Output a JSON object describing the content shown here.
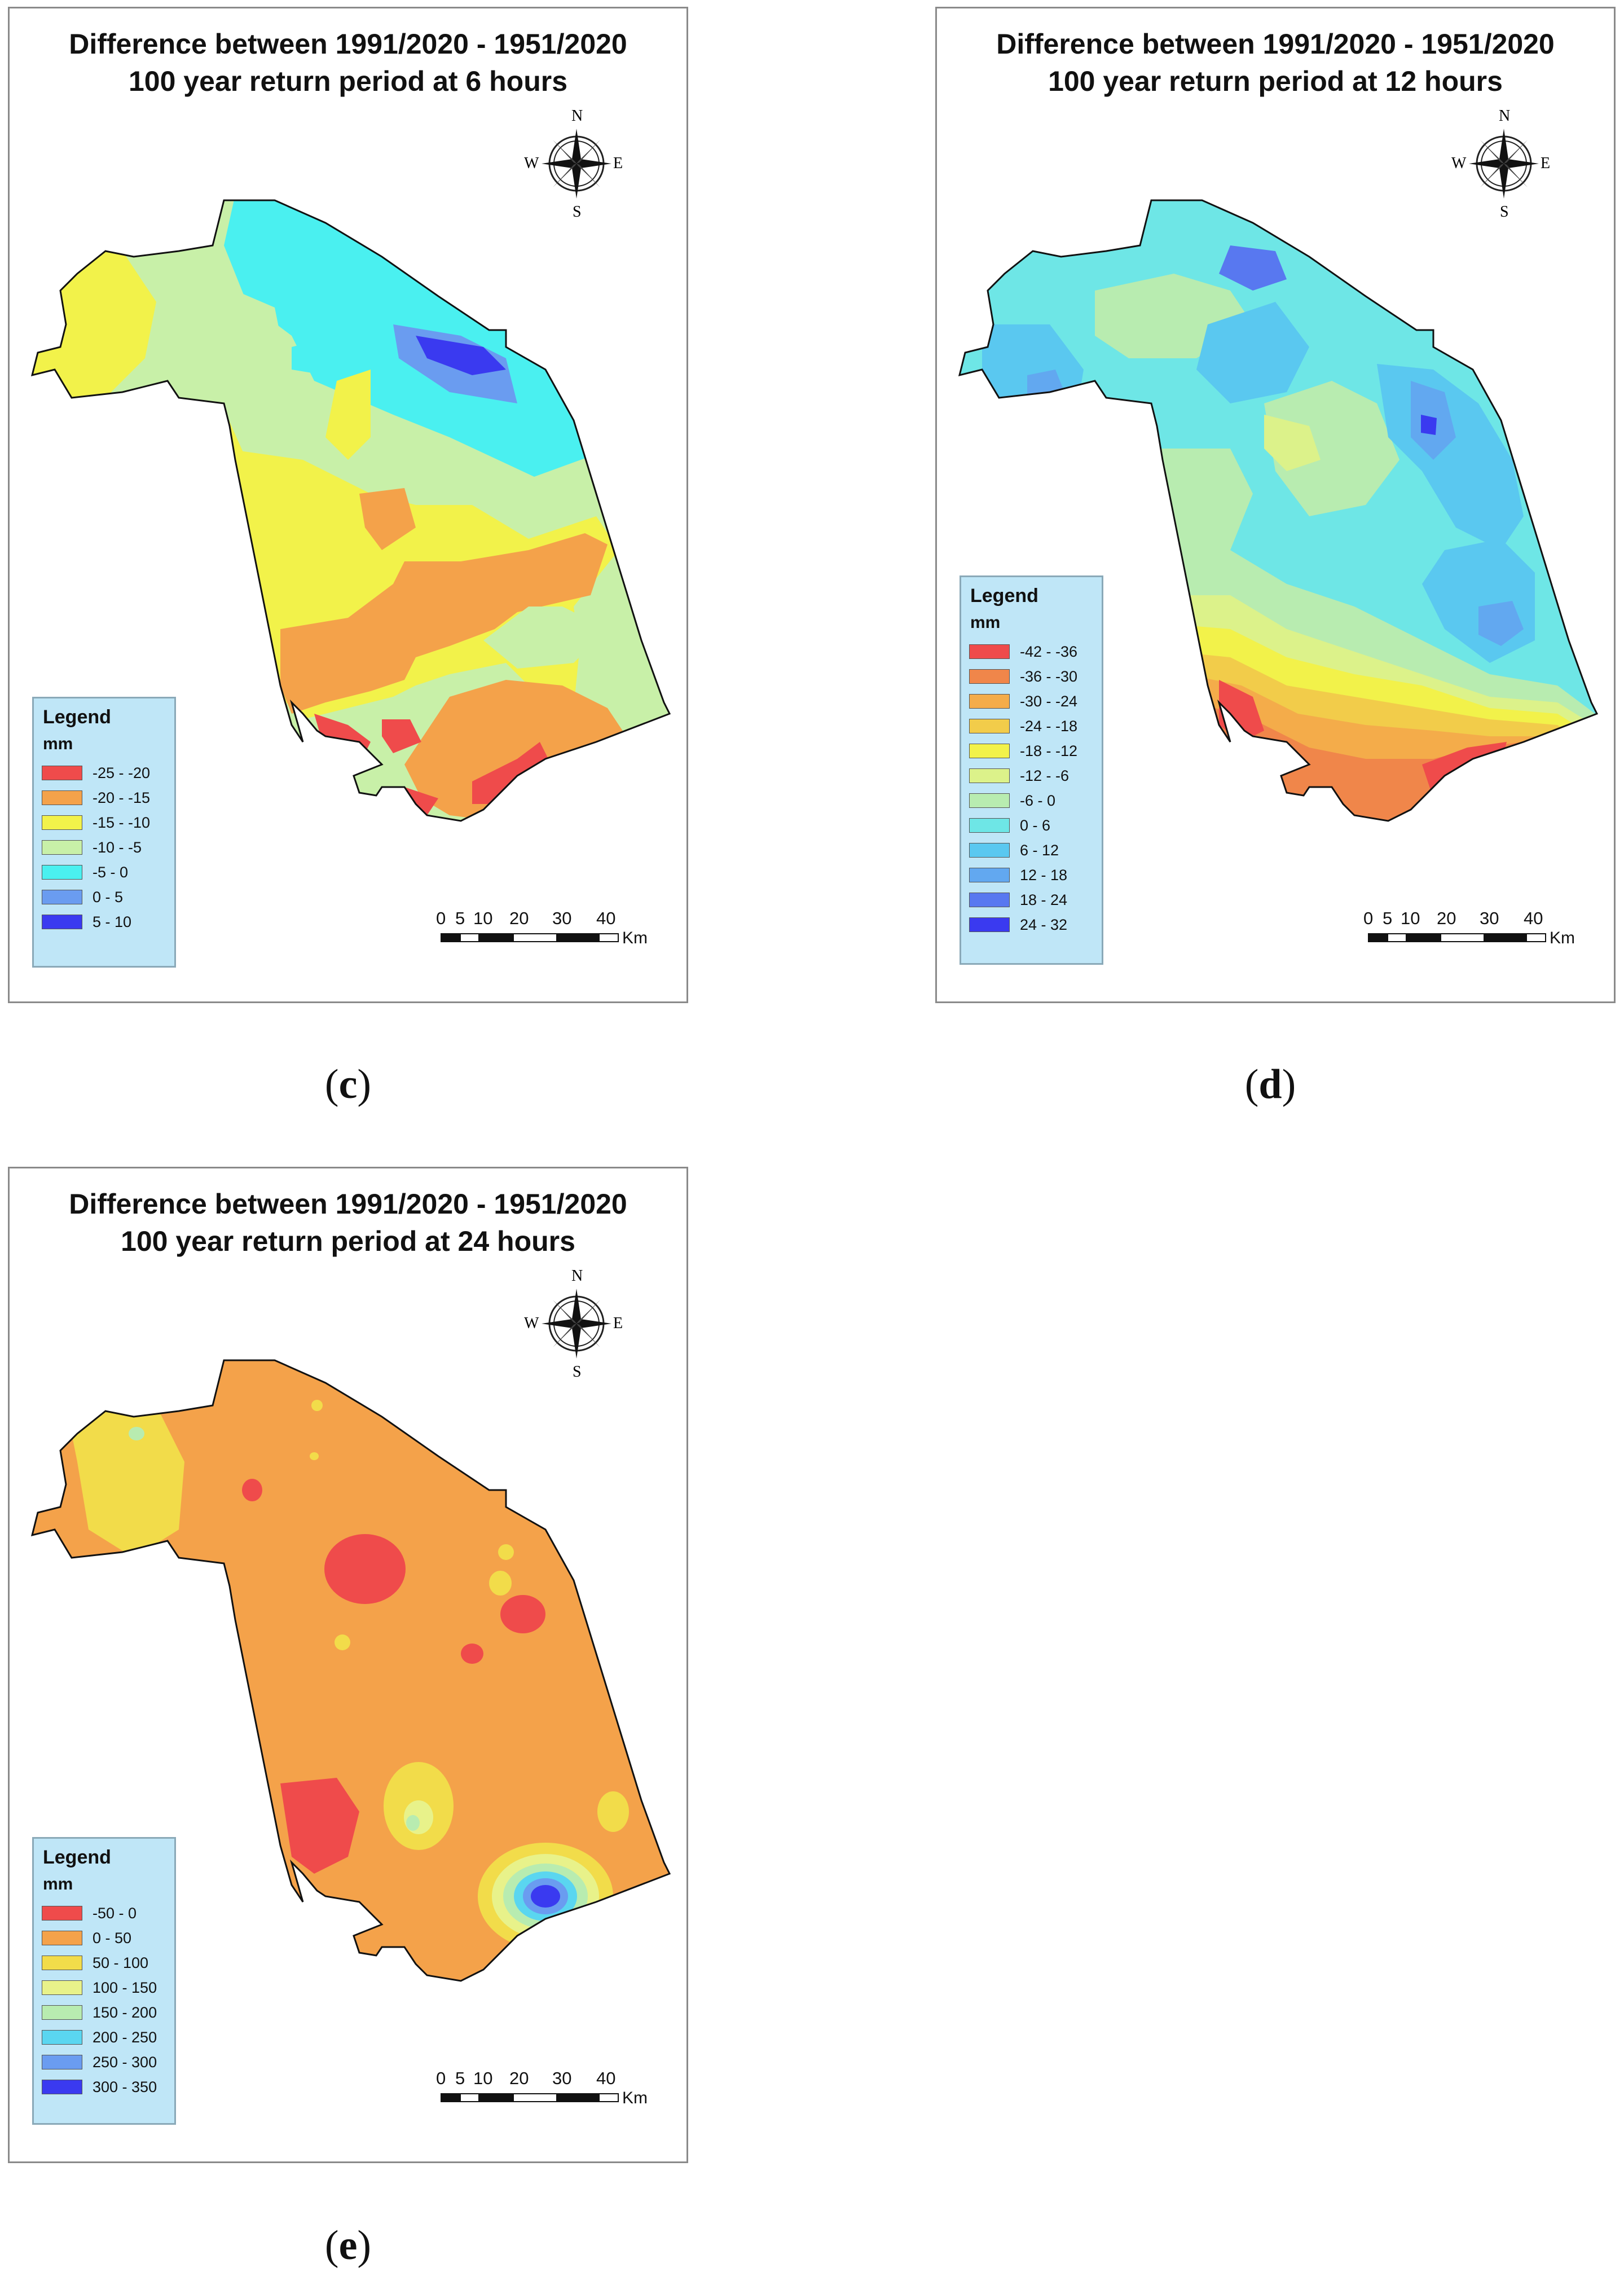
{
  "panels": [
    {
      "id": "c",
      "letter_open": "(",
      "letter": "c",
      "letter_close": ")",
      "title_line1": "Difference between 1991/2020 - 1951/2020",
      "title_line2": "100 year return period at 6 hours",
      "legend_title": "Legend",
      "legend_unit": "mm",
      "legend": [
        {
          "label": "-25 - -20",
          "color": "#ef4b4b"
        },
        {
          "label": "-20 - -15",
          "color": "#f4a24a"
        },
        {
          "label": "-15 - -10",
          "color": "#f2f24a"
        },
        {
          "label": "-10 - -5",
          "color": "#c8f0a8"
        },
        {
          "label": "-5 - 0",
          "color": "#4af0f0"
        },
        {
          "label": "0 - 5",
          "color": "#6a9cf0"
        },
        {
          "label": "5 - 10",
          "color": "#3a3af0"
        }
      ],
      "scale_ticks": [
        "0",
        "5",
        "10",
        "20",
        "30",
        "40"
      ],
      "scale_unit": "Km",
      "compass": {
        "n": "N",
        "s": "S",
        "e": "E",
        "w": "W"
      }
    },
    {
      "id": "d",
      "letter_open": "(",
      "letter": "d",
      "letter_close": ")",
      "title_line1": "Difference between 1991/2020 - 1951/2020",
      "title_line2": "100 year return period at 12 hours",
      "legend_title": "Legend",
      "legend_unit": "mm",
      "legend": [
        {
          "label": "-42 - -36",
          "color": "#ef4b4b"
        },
        {
          "label": "-36 - -30",
          "color": "#f0864a"
        },
        {
          "label": "-30 - -24",
          "color": "#f4ac4a"
        },
        {
          "label": "-24 - -18",
          "color": "#f2cc4a"
        },
        {
          "label": "-18 - -12",
          "color": "#f2f24a"
        },
        {
          "label": "-12 - -6",
          "color": "#dcf28a"
        },
        {
          "label": "-6 - 0",
          "color": "#b8ecb0"
        },
        {
          "label": "0 - 6",
          "color": "#6ee6e6"
        },
        {
          "label": "6 - 12",
          "color": "#5ac8f0"
        },
        {
          "label": "12 - 18",
          "color": "#62a8f0"
        },
        {
          "label": "18 - 24",
          "color": "#5878f0"
        },
        {
          "label": "24 - 32",
          "color": "#3a3af0"
        }
      ],
      "scale_ticks": [
        "0",
        "5",
        "10",
        "20",
        "30",
        "40"
      ],
      "scale_unit": "Km",
      "compass": {
        "n": "N",
        "s": "S",
        "e": "E",
        "w": "W"
      }
    },
    {
      "id": "e",
      "letter_open": "(",
      "letter": "e",
      "letter_close": ")",
      "title_line1": "Difference between 1991/2020 - 1951/2020",
      "title_line2": "100 year return period at 24 hours",
      "legend_title": "Legend",
      "legend_unit": "mm",
      "legend": [
        {
          "label": "-50 - 0",
          "color": "#ef4b4b"
        },
        {
          "label": "0 - 50",
          "color": "#f4a24a"
        },
        {
          "label": "50 - 100",
          "color": "#f2dc4a"
        },
        {
          "label": "100 - 150",
          "color": "#e8f28a"
        },
        {
          "label": "150 - 200",
          "color": "#b8ecb0"
        },
        {
          "label": "200 - 250",
          "color": "#5ad6f0"
        },
        {
          "label": "250 - 300",
          "color": "#6a9cf0"
        },
        {
          "label": "300 - 350",
          "color": "#3a3af0"
        }
      ],
      "scale_ticks": [
        "0",
        "5",
        "10",
        "20",
        "30",
        "40"
      ],
      "scale_unit": "Km",
      "compass": {
        "n": "N",
        "s": "S",
        "e": "E",
        "w": "W"
      }
    }
  ]
}
